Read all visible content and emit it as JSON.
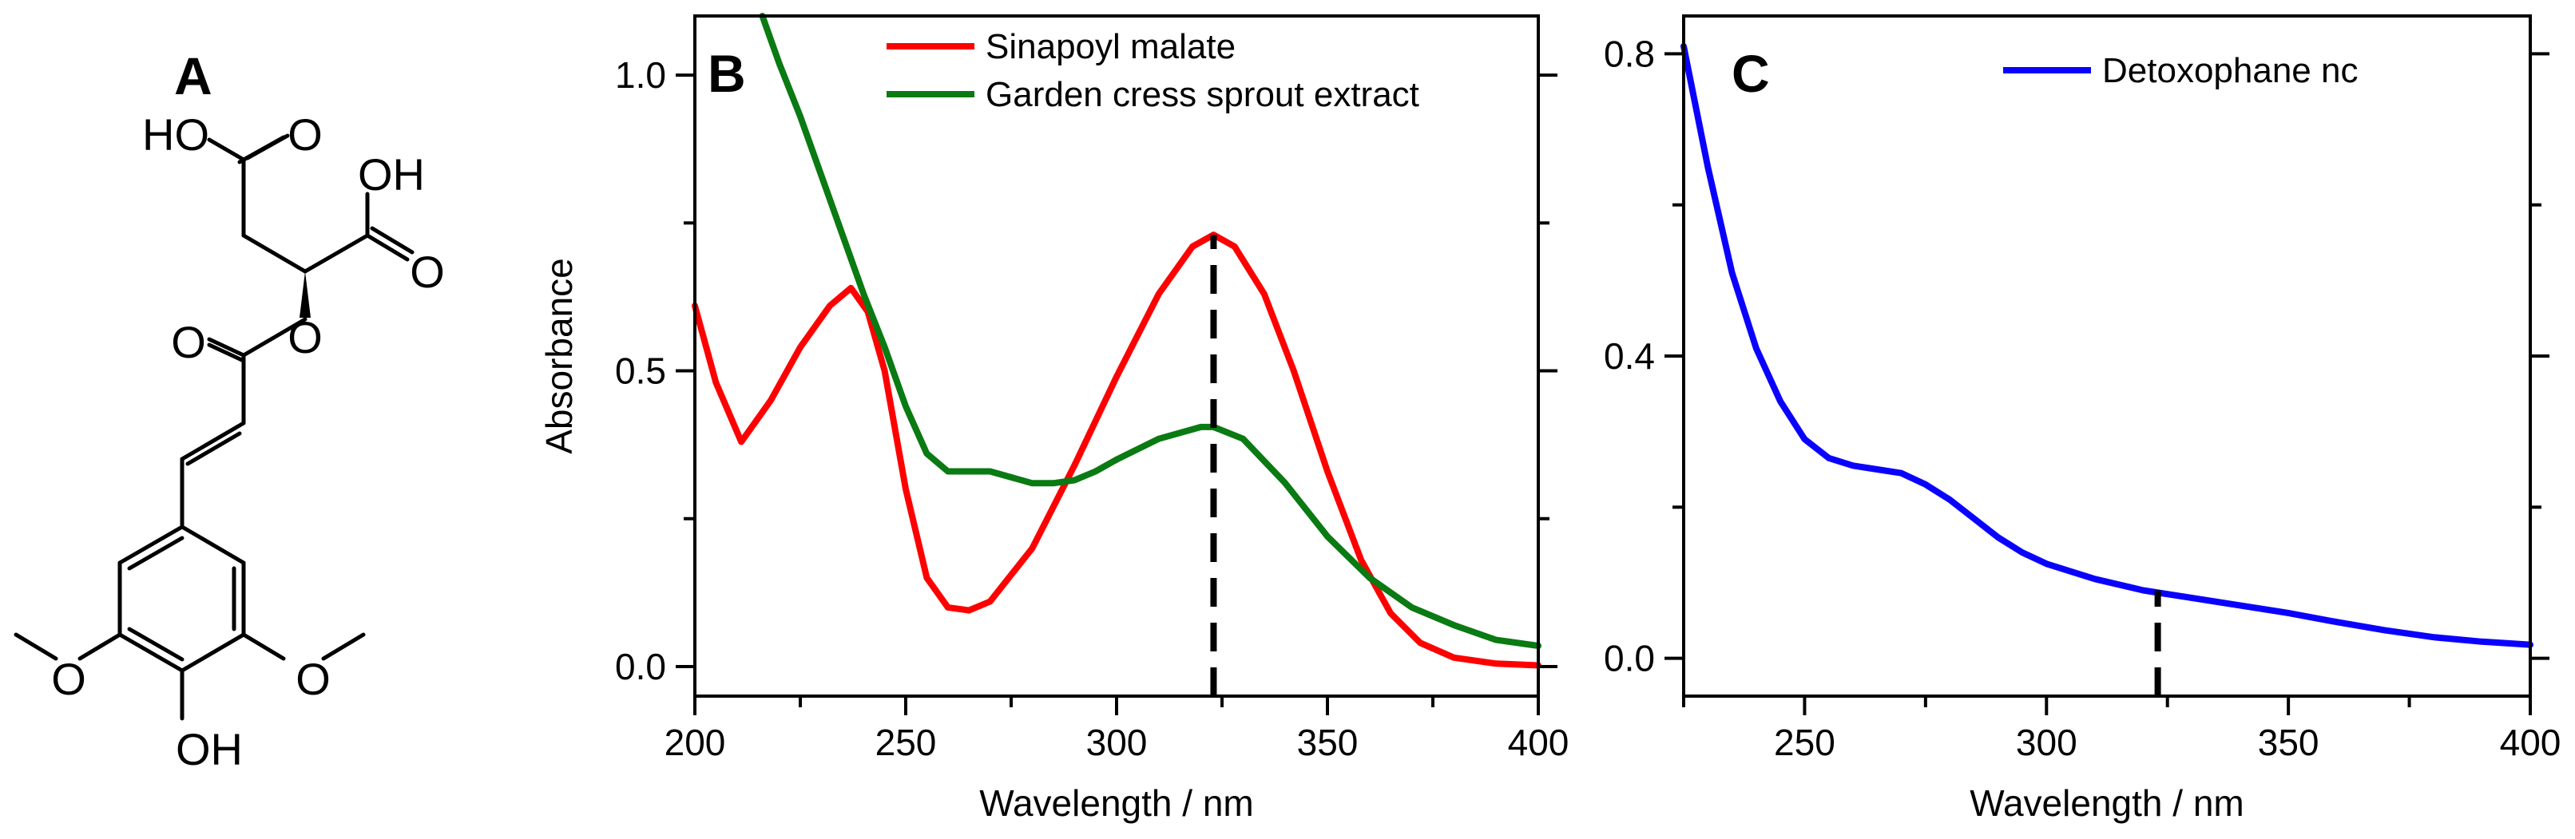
{
  "panels": {
    "a": {
      "letter": "A",
      "atoms": {
        "ho_top": "HO",
        "o_carbonyl_top": "O",
        "oh_right": "OH",
        "o_carbonyl_right": "O",
        "o_ester_carbonyl": "O",
        "o_ester": "O",
        "o_methoxy_left": "O",
        "o_methoxy_right": "O",
        "oh_bottom": "OH"
      }
    },
    "b": {
      "letter": "B"
    },
    "c": {
      "letter": "C"
    }
  },
  "colors": {
    "sinapoyl": "#ff0000",
    "garden": "#0a7a12",
    "detox": "#0a00ff",
    "axis": "#000000"
  },
  "chart_data": [
    {
      "id": "B",
      "type": "line",
      "title": "",
      "xlabel": "Wavelength / nm",
      "ylabel": "Absorbance",
      "xlim": [
        200,
        400
      ],
      "ylim": [
        -0.05,
        1.1
      ],
      "xticks": [
        200,
        250,
        300,
        350,
        400
      ],
      "xtick_labels": [
        "200",
        "250",
        "300",
        "350",
        "400"
      ],
      "yticks": [
        0.0,
        0.5,
        1.0
      ],
      "ytick_labels": [
        "0.0",
        "0.5",
        "1.0"
      ],
      "grid": false,
      "legend_position": "top-center",
      "series": [
        {
          "name": "Sinapoyl malate",
          "x": [
            200,
            205,
            211,
            218,
            225,
            232,
            237,
            241,
            245,
            250,
            255,
            260,
            265,
            270,
            280,
            290,
            300,
            310,
            318,
            323,
            328,
            335,
            342,
            350,
            358,
            365,
            372,
            380,
            390,
            400
          ],
          "y": [
            0.61,
            0.48,
            0.38,
            0.45,
            0.54,
            0.61,
            0.64,
            0.6,
            0.5,
            0.3,
            0.15,
            0.1,
            0.095,
            0.11,
            0.2,
            0.34,
            0.49,
            0.63,
            0.71,
            0.73,
            0.71,
            0.63,
            0.5,
            0.33,
            0.18,
            0.09,
            0.04,
            0.015,
            0.005,
            0.002
          ]
        },
        {
          "name": "Garden cress sprout extract",
          "x": [
            216,
            220,
            225,
            230,
            235,
            240,
            245,
            250,
            255,
            260,
            265,
            270,
            275,
            280,
            285,
            290,
            295,
            300,
            310,
            320,
            323,
            330,
            340,
            350,
            360,
            370,
            380,
            390,
            400
          ],
          "y": [
            1.1,
            1.02,
            0.93,
            0.83,
            0.73,
            0.63,
            0.54,
            0.44,
            0.36,
            0.33,
            0.33,
            0.33,
            0.32,
            0.31,
            0.31,
            0.315,
            0.33,
            0.35,
            0.385,
            0.405,
            0.405,
            0.385,
            0.31,
            0.22,
            0.15,
            0.1,
            0.07,
            0.045,
            0.035
          ]
        }
      ],
      "annotations": [
        {
          "type": "vline",
          "x": 323,
          "y_to": 0.73,
          "style": "dashed"
        }
      ]
    },
    {
      "id": "C",
      "type": "line",
      "title": "",
      "xlabel": "Wavelength / nm",
      "ylabel": "",
      "xlim": [
        225,
        400
      ],
      "ylim": [
        -0.05,
        0.85
      ],
      "xticks": [
        250,
        300,
        350,
        400
      ],
      "xtick_labels": [
        "250",
        "300",
        "350",
        "400"
      ],
      "yticks": [
        0.0,
        0.4,
        0.8
      ],
      "ytick_labels": [
        "0.0",
        "0.4",
        "0.8"
      ],
      "grid": false,
      "legend_position": "top-right",
      "series": [
        {
          "name": "Detoxophane nc",
          "x": [
            225,
            230,
            235,
            240,
            245,
            250,
            255,
            260,
            265,
            270,
            275,
            280,
            285,
            290,
            295,
            300,
            310,
            320,
            330,
            340,
            350,
            360,
            370,
            380,
            390,
            400
          ],
          "y": [
            0.81,
            0.65,
            0.51,
            0.41,
            0.34,
            0.29,
            0.265,
            0.255,
            0.25,
            0.245,
            0.23,
            0.21,
            0.185,
            0.16,
            0.14,
            0.125,
            0.105,
            0.09,
            0.08,
            0.07,
            0.06,
            0.048,
            0.037,
            0.028,
            0.022,
            0.018
          ]
        }
      ],
      "annotations": [
        {
          "type": "vline",
          "x": 323,
          "y_to": 0.09,
          "style": "dashed"
        }
      ]
    }
  ]
}
